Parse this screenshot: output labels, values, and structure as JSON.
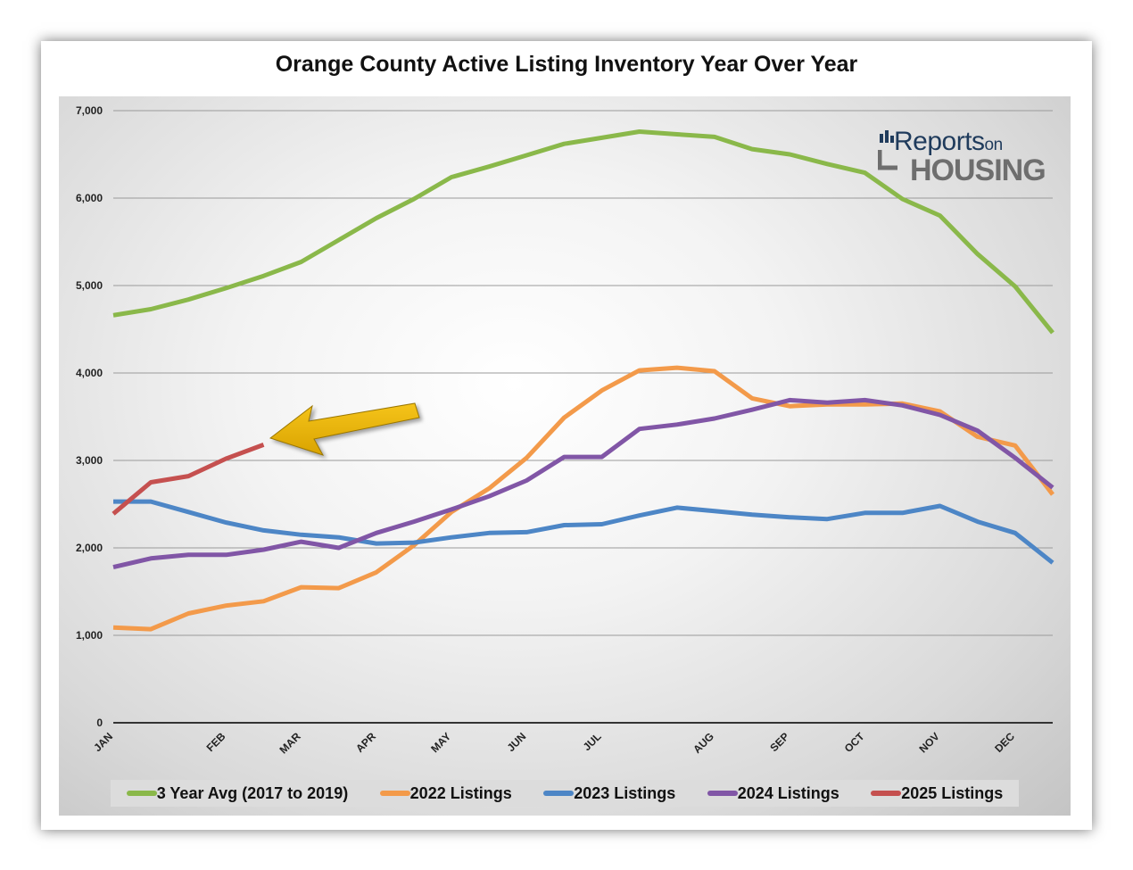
{
  "logo": {
    "line1": "Reports",
    "line1_small": "on",
    "line2": "HOUSING"
  },
  "chart_data": {
    "type": "line",
    "title": "Orange County Active Listing Inventory Year Over Year",
    "y_ticks": [
      "0",
      "1,000",
      "2,000",
      "3,000",
      "4,000",
      "5,000",
      "6,000",
      "7,000"
    ],
    "ylim": [
      0,
      7000
    ],
    "x_labels": [
      {
        "label": "JAN",
        "week": 0
      },
      {
        "label": "FEB",
        "week": 3
      },
      {
        "label": "MAR",
        "week": 5
      },
      {
        "label": "APR",
        "week": 7
      },
      {
        "label": "MAY",
        "week": 9
      },
      {
        "label": "JUN",
        "week": 11
      },
      {
        "label": "JUL",
        "week": 13
      },
      {
        "label": "AUG",
        "week": 16
      },
      {
        "label": "SEP",
        "week": 18
      },
      {
        "label": "OCT",
        "week": 20
      },
      {
        "label": "NOV",
        "week": 22
      },
      {
        "label": "DEC",
        "week": 24
      }
    ],
    "x_points": 26,
    "grid": true,
    "legend_position": "bottom",
    "annotation": "arrow pointing to end of 2025 Listings line",
    "series": [
      {
        "name": "3 Year Avg (2017 to 2019)",
        "color": "#8ab84a",
        "values": [
          4660,
          4730,
          4840,
          4970,
          5110,
          5270,
          5520,
          5770,
          5990,
          6240,
          6360,
          6490,
          6620,
          6690,
          6760,
          6730,
          6700,
          6560,
          6500,
          6390,
          6290,
          5990,
          5800,
          5360,
          4990,
          4460
        ]
      },
      {
        "name": "2022 Listings",
        "color": "#f39a4a",
        "values": [
          1090,
          1070,
          1250,
          1340,
          1390,
          1550,
          1540,
          1720,
          2030,
          2410,
          2680,
          3030,
          3490,
          3800,
          4030,
          4060,
          4020,
          3710,
          3620,
          3640,
          3640,
          3650,
          3560,
          3270,
          3170,
          2610
        ]
      },
      {
        "name": "2023 Listings",
        "color": "#4d86c6",
        "values": [
          2530,
          2530,
          2410,
          2290,
          2200,
          2150,
          2120,
          2050,
          2060,
          2120,
          2170,
          2180,
          2260,
          2270,
          2370,
          2460,
          2420,
          2380,
          2350,
          2330,
          2400,
          2400,
          2480,
          2300,
          2170,
          1830
        ]
      },
      {
        "name": "2024 Listings",
        "color": "#8156a6",
        "values": [
          1780,
          1880,
          1920,
          1920,
          1980,
          2070,
          2000,
          2170,
          2300,
          2440,
          2590,
          2770,
          3040,
          3040,
          3360,
          3410,
          3480,
          3580,
          3690,
          3660,
          3690,
          3630,
          3520,
          3340,
          3030,
          2690
        ]
      },
      {
        "name": "2025 Listings",
        "color": "#c5504f",
        "values": [
          2390,
          2750,
          2820,
          3020,
          3180
        ]
      }
    ]
  }
}
